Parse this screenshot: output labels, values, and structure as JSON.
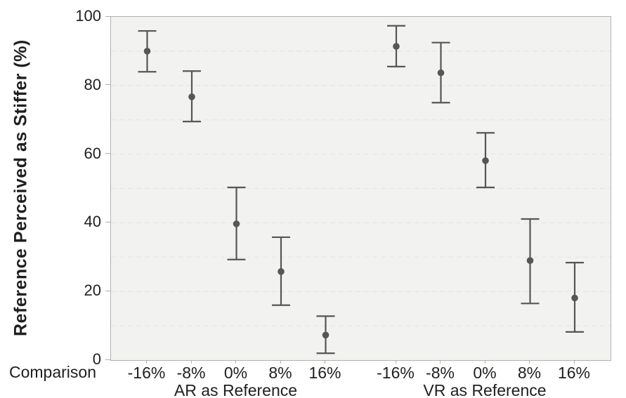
{
  "chart_data": {
    "type": "scatter",
    "subtype": "means-with-95ci-error-bars",
    "title": "",
    "ylabel": "Reference Perceived as Stiffer (%)",
    "xlabel": "Comparison",
    "ylim": [
      0,
      100
    ],
    "yticks": [
      0,
      20,
      40,
      60,
      80,
      100
    ],
    "grid": {
      "shown": true,
      "interval": 10,
      "style": "dashed"
    },
    "legend_position": "none",
    "categories": [
      "-16%",
      "-8%",
      "0%",
      "8%",
      "16%"
    ],
    "groups": [
      {
        "label": "AR as Reference",
        "points": [
          {
            "x": "-16%",
            "mean": 90.0,
            "ci_low": 84.0,
            "ci_high": 95.9
          },
          {
            "x": "-8%",
            "mean": 76.7,
            "ci_low": 69.5,
            "ci_high": 84.2
          },
          {
            "x": "0%",
            "mean": 39.7,
            "ci_low": 29.3,
            "ci_high": 50.3
          },
          {
            "x": "8%",
            "mean": 25.8,
            "ci_low": 16.0,
            "ci_high": 35.8
          },
          {
            "x": "16%",
            "mean": 7.3,
            "ci_low": 2.0,
            "ci_high": 12.8
          }
        ]
      },
      {
        "label": "VR as Reference",
        "points": [
          {
            "x": "-16%",
            "mean": 91.4,
            "ci_low": 85.5,
            "ci_high": 97.4
          },
          {
            "x": "-8%",
            "mean": 83.7,
            "ci_low": 75.0,
            "ci_high": 92.5
          },
          {
            "x": "0%",
            "mean": 58.1,
            "ci_low": 50.3,
            "ci_high": 66.2
          },
          {
            "x": "8%",
            "mean": 29.0,
            "ci_low": 16.5,
            "ci_high": 41.1
          },
          {
            "x": "16%",
            "mean": 18.1,
            "ci_low": 8.2,
            "ci_high": 28.4
          }
        ]
      }
    ],
    "colors": {
      "point": "#565656",
      "error_bar": "#565656",
      "plot_background": "#f2f2f1",
      "grid_line": "#e3e3e1",
      "plot_border": "#b1b1af",
      "tick_mark": "#adadab",
      "text": "#1f1f1f"
    }
  }
}
